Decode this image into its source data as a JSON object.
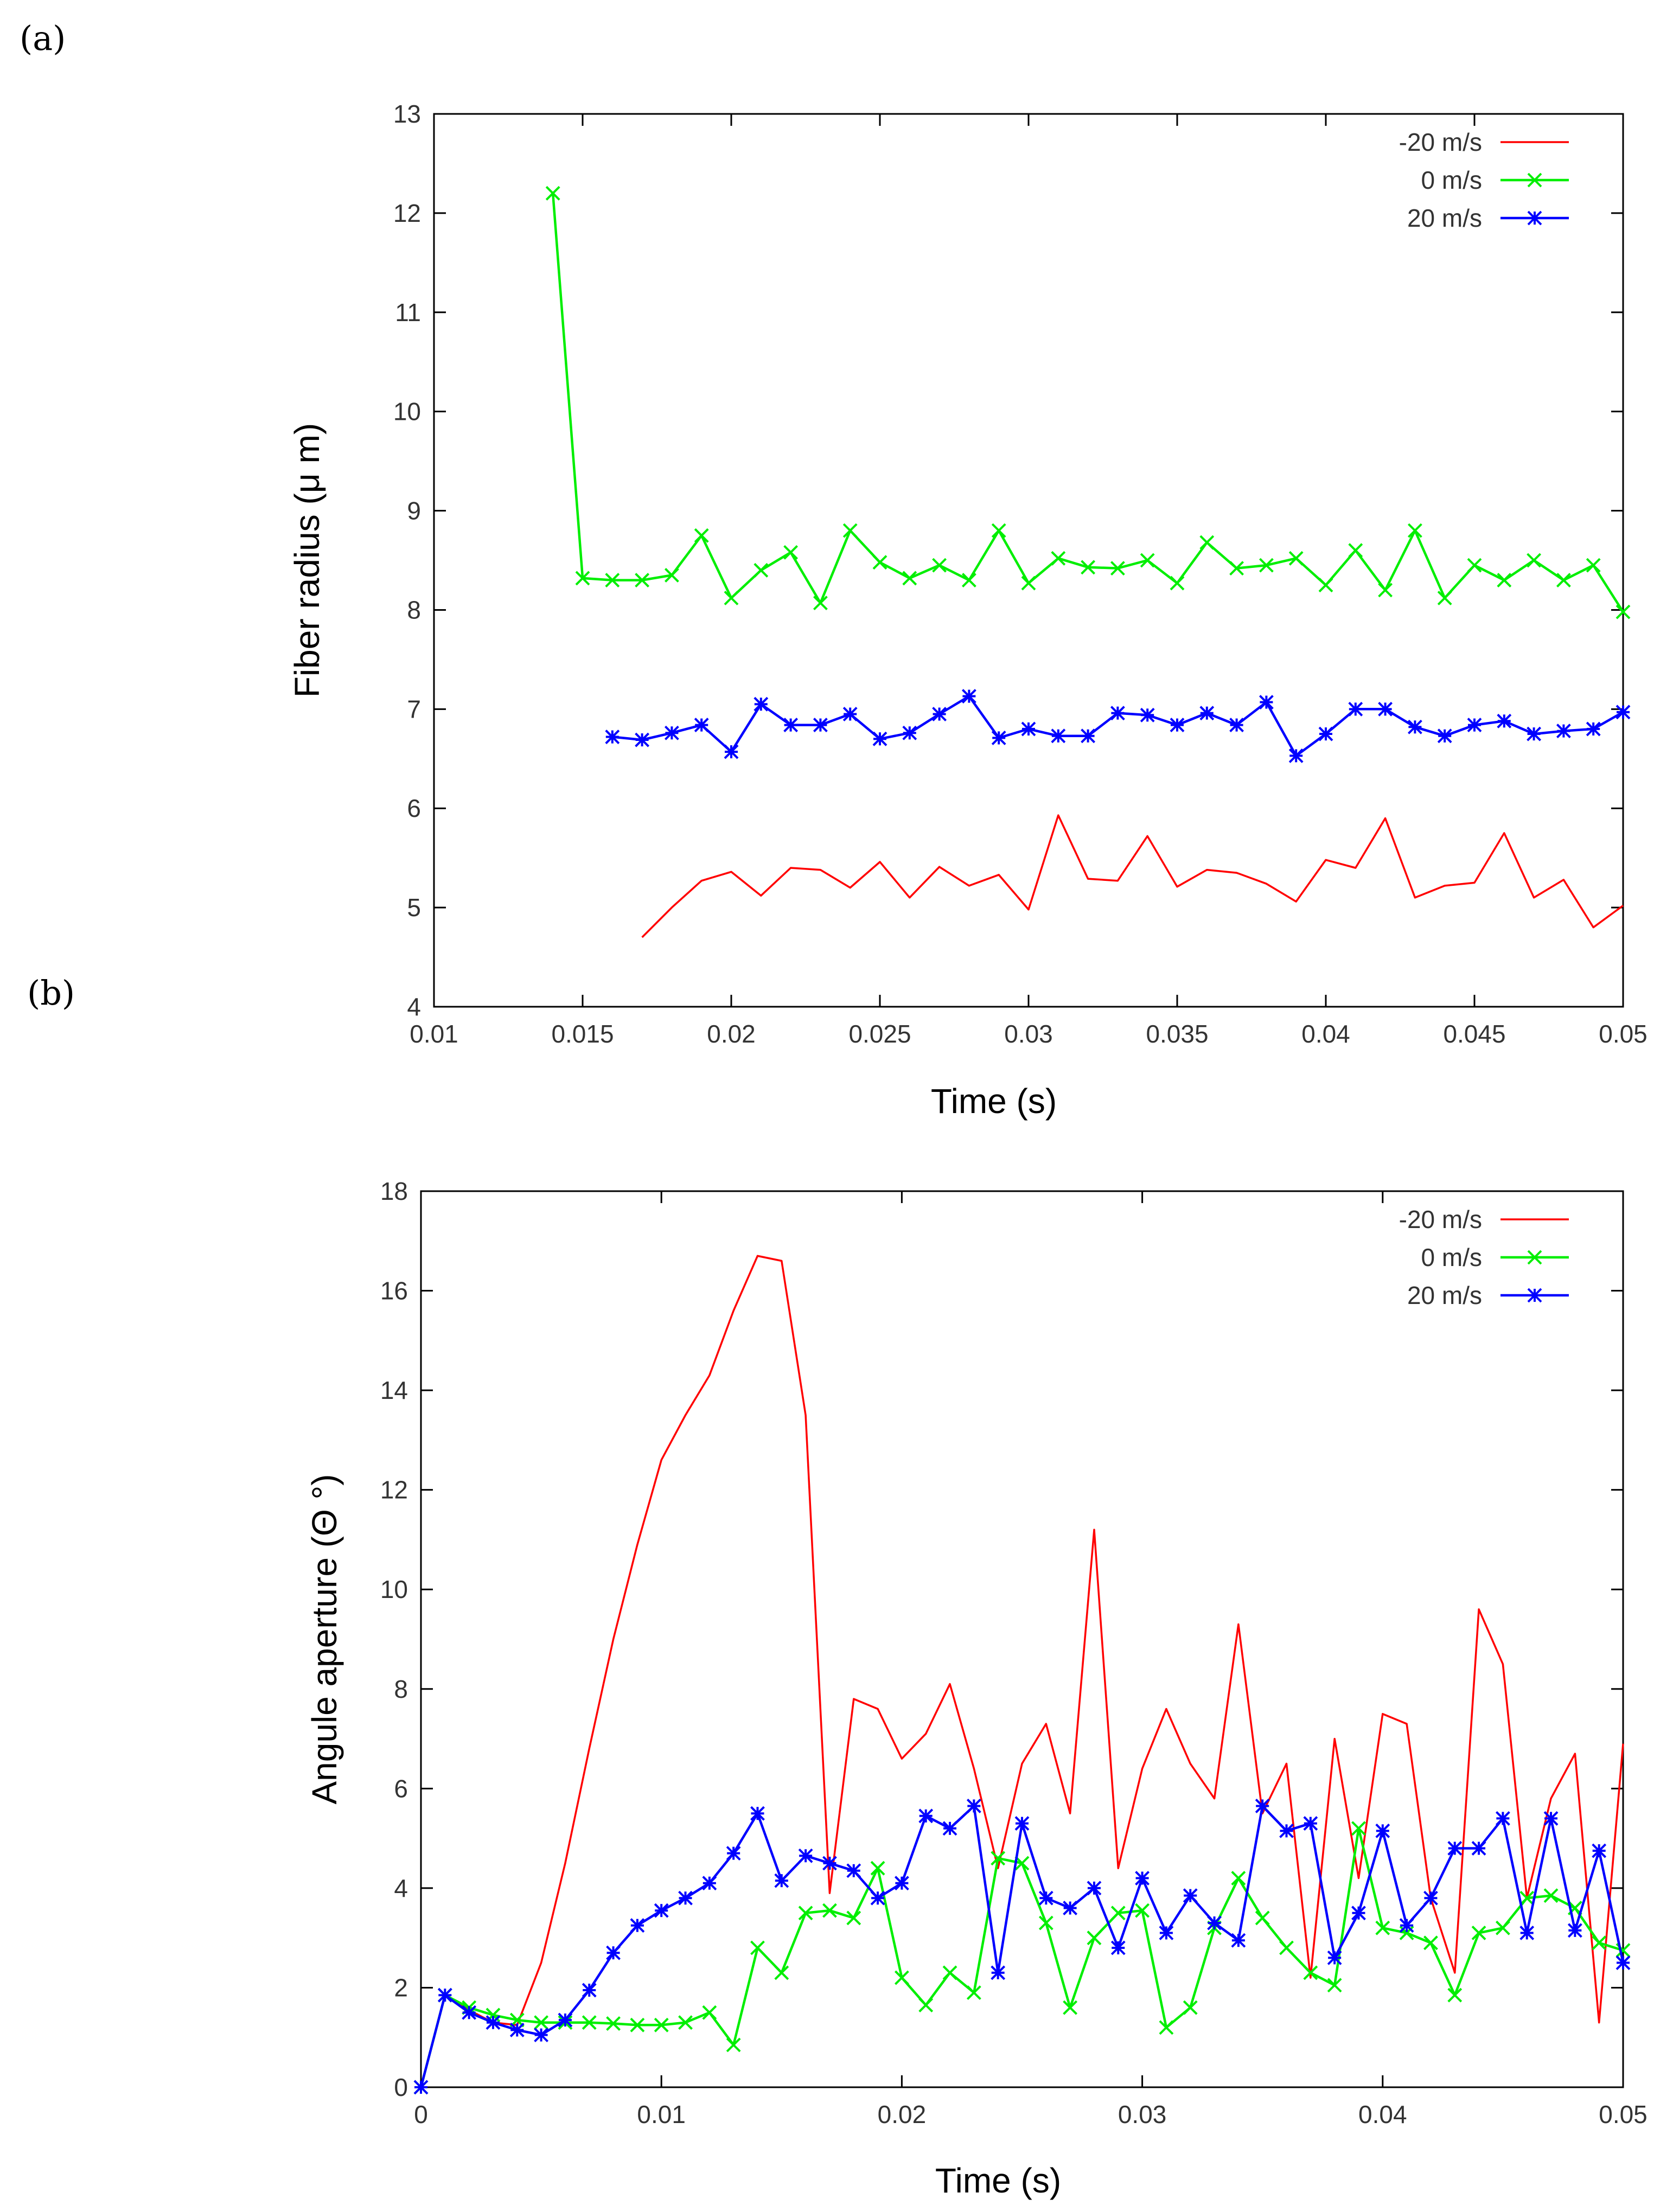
{
  "figure": {
    "panel_labels": [
      "(a)",
      "(b)"
    ]
  },
  "chart_data": [
    {
      "type": "line",
      "panel": "(a)",
      "title": "",
      "xlabel": "Time (s)",
      "ylabel": "Fiber  radius (μ m)",
      "xlim": [
        0.01,
        0.05
      ],
      "ylim": [
        4,
        13
      ],
      "xticks": [
        0.01,
        0.015,
        0.02,
        0.025,
        0.03,
        0.035,
        0.04,
        0.045,
        0.05
      ],
      "xtick_labels": [
        "0.01",
        "0.015",
        "0.02",
        "0.025",
        "0.03",
        "0.035",
        "0.04",
        "0.045",
        "0.05"
      ],
      "yticks": [
        4,
        5,
        6,
        7,
        8,
        9,
        10,
        11,
        12,
        13
      ],
      "ytick_labels": [
        "4",
        "5",
        "6",
        "7",
        "8",
        "9",
        "10",
        "11",
        "12",
        "13"
      ],
      "legend_position": "top-right",
      "series": [
        {
          "name": "-20 m/s",
          "color": "#ff0000",
          "marker": "none",
          "x": [
            0.017,
            0.018,
            0.019,
            0.02,
            0.021,
            0.022,
            0.023,
            0.024,
            0.025,
            0.026,
            0.027,
            0.028,
            0.029,
            0.03,
            0.031,
            0.032,
            0.033,
            0.034,
            0.035,
            0.036,
            0.037,
            0.038,
            0.039,
            0.04,
            0.041,
            0.042,
            0.043,
            0.044,
            0.045,
            0.046,
            0.047,
            0.048,
            0.049,
            0.05
          ],
          "y": [
            4.7,
            5.0,
            5.27,
            5.36,
            5.12,
            5.4,
            5.38,
            5.2,
            5.46,
            5.1,
            5.41,
            5.22,
            5.33,
            4.98,
            5.93,
            5.29,
            5.27,
            5.72,
            5.21,
            5.38,
            5.35,
            5.24,
            5.06,
            5.48,
            5.4,
            5.9,
            5.1,
            5.22,
            5.25,
            5.75,
            5.1,
            5.28,
            4.8,
            5.02
          ]
        },
        {
          "name": "0 m/s",
          "color": "#00ee00",
          "marker": "x",
          "x": [
            0.014,
            0.015,
            0.016,
            0.017,
            0.018,
            0.019,
            0.02,
            0.021,
            0.022,
            0.023,
            0.024,
            0.025,
            0.026,
            0.027,
            0.028,
            0.029,
            0.03,
            0.031,
            0.032,
            0.033,
            0.034,
            0.035,
            0.036,
            0.037,
            0.038,
            0.039,
            0.04,
            0.041,
            0.042,
            0.043,
            0.044,
            0.045,
            0.046,
            0.047,
            0.048,
            0.049,
            0.05
          ],
          "y": [
            12.2,
            8.32,
            8.3,
            8.3,
            8.35,
            8.75,
            8.12,
            8.4,
            8.58,
            8.07,
            8.8,
            8.48,
            8.32,
            8.45,
            8.3,
            8.8,
            8.27,
            8.52,
            8.43,
            8.42,
            8.5,
            8.27,
            8.68,
            8.42,
            8.45,
            8.52,
            8.25,
            8.6,
            8.2,
            8.8,
            8.12,
            8.45,
            8.3,
            8.5,
            8.3,
            8.45,
            7.98
          ]
        },
        {
          "name": "20 m/s",
          "color": "#0000ff",
          "marker": "star",
          "x": [
            0.016,
            0.017,
            0.018,
            0.019,
            0.02,
            0.021,
            0.022,
            0.023,
            0.024,
            0.025,
            0.026,
            0.027,
            0.028,
            0.029,
            0.03,
            0.031,
            0.032,
            0.033,
            0.034,
            0.035,
            0.036,
            0.037,
            0.038,
            0.039,
            0.04,
            0.041,
            0.042,
            0.043,
            0.044,
            0.045,
            0.046,
            0.047,
            0.048,
            0.049,
            0.05
          ],
          "y": [
            6.72,
            6.69,
            6.76,
            6.84,
            6.57,
            7.05,
            6.84,
            6.84,
            6.95,
            6.7,
            6.76,
            6.95,
            7.13,
            6.71,
            6.8,
            6.73,
            6.73,
            6.96,
            6.94,
            6.84,
            6.96,
            6.84,
            7.07,
            6.53,
            6.75,
            7.0,
            7.0,
            6.82,
            6.73,
            6.84,
            6.88,
            6.75,
            6.78,
            6.8,
            6.97
          ]
        }
      ]
    },
    {
      "type": "line",
      "panel": "(b)",
      "title": "",
      "xlabel": "Time (s)",
      "ylabel": "Angule aperture  (Θ °)",
      "xlim": [
        0,
        0.05
      ],
      "ylim": [
        0,
        18
      ],
      "xticks": [
        0,
        0.01,
        0.02,
        0.03,
        0.04,
        0.05
      ],
      "xtick_labels": [
        "0",
        "0.01",
        "0.02",
        "0.03",
        "0.04",
        "0.05"
      ],
      "yticks": [
        0,
        2,
        4,
        6,
        8,
        10,
        12,
        14,
        16,
        18
      ],
      "ytick_labels": [
        "0",
        "2",
        "4",
        "6",
        "8",
        "10",
        "12",
        "14",
        "16",
        "18"
      ],
      "legend_position": "top-right",
      "series": [
        {
          "name": "-20 m/s",
          "color": "#ff0000",
          "marker": "none",
          "x": [
            0.0,
            0.001,
            0.002,
            0.003,
            0.004,
            0.005,
            0.006,
            0.007,
            0.008,
            0.009,
            0.01,
            0.011,
            0.012,
            0.013,
            0.014,
            0.015,
            0.016,
            0.017,
            0.018,
            0.019,
            0.02,
            0.021,
            0.022,
            0.023,
            0.024,
            0.025,
            0.026,
            0.027,
            0.028,
            0.029,
            0.03,
            0.031,
            0.032,
            0.033,
            0.034,
            0.035,
            0.036,
            0.037,
            0.038,
            0.039,
            0.04,
            0.041,
            0.042,
            0.043,
            0.044,
            0.045,
            0.046,
            0.047,
            0.048,
            0.049,
            0.05
          ],
          "y": [
            0.0,
            1.85,
            1.55,
            1.3,
            1.25,
            2.5,
            4.5,
            6.8,
            9.0,
            10.9,
            12.6,
            13.5,
            14.3,
            15.6,
            16.7,
            16.6,
            13.5,
            3.9,
            7.8,
            7.6,
            6.6,
            7.1,
            8.1,
            6.4,
            4.4,
            6.5,
            7.3,
            5.5,
            11.2,
            4.4,
            6.4,
            7.6,
            6.5,
            5.8,
            9.3,
            5.5,
            6.5,
            2.2,
            7.0,
            4.2,
            7.5,
            7.3,
            3.8,
            2.3,
            9.6,
            8.5,
            3.8,
            5.8,
            6.7,
            1.3,
            6.9
          ]
        },
        {
          "name": "0 m/s",
          "color": "#00ee00",
          "marker": "x",
          "x": [
            0.0,
            0.001,
            0.002,
            0.003,
            0.004,
            0.005,
            0.006,
            0.007,
            0.008,
            0.009,
            0.01,
            0.011,
            0.012,
            0.013,
            0.014,
            0.015,
            0.016,
            0.017,
            0.018,
            0.019,
            0.02,
            0.021,
            0.022,
            0.023,
            0.024,
            0.025,
            0.026,
            0.027,
            0.028,
            0.029,
            0.03,
            0.031,
            0.032,
            0.033,
            0.034,
            0.035,
            0.036,
            0.037,
            0.038,
            0.039,
            0.04,
            0.041,
            0.042,
            0.043,
            0.044,
            0.045,
            0.046,
            0.047,
            0.048,
            0.049,
            0.05
          ],
          "y": [
            0.0,
            1.85,
            1.6,
            1.45,
            1.35,
            1.3,
            1.3,
            1.3,
            1.28,
            1.25,
            1.25,
            1.3,
            1.5,
            0.85,
            2.8,
            2.3,
            3.5,
            3.55,
            3.4,
            4.4,
            2.2,
            1.65,
            2.3,
            1.9,
            4.6,
            4.5,
            3.3,
            1.6,
            3.0,
            3.5,
            3.55,
            1.2,
            1.6,
            3.2,
            4.2,
            3.4,
            2.8,
            2.3,
            2.05,
            5.2,
            3.2,
            3.1,
            2.9,
            1.85,
            3.1,
            3.2,
            3.8,
            3.85,
            3.6,
            2.9,
            2.75
          ]
        },
        {
          "name": "20 m/s",
          "color": "#0000ff",
          "marker": "star",
          "x": [
            0.0,
            0.001,
            0.002,
            0.003,
            0.004,
            0.005,
            0.006,
            0.007,
            0.008,
            0.009,
            0.01,
            0.011,
            0.012,
            0.013,
            0.014,
            0.015,
            0.016,
            0.017,
            0.018,
            0.019,
            0.02,
            0.021,
            0.022,
            0.023,
            0.024,
            0.025,
            0.026,
            0.027,
            0.028,
            0.029,
            0.03,
            0.031,
            0.032,
            0.033,
            0.034,
            0.035,
            0.036,
            0.037,
            0.038,
            0.039,
            0.04,
            0.041,
            0.042,
            0.043,
            0.044,
            0.045,
            0.046,
            0.047,
            0.048,
            0.049,
            0.05
          ],
          "y": [
            0.0,
            1.85,
            1.5,
            1.3,
            1.15,
            1.05,
            1.35,
            1.95,
            2.7,
            3.25,
            3.55,
            3.8,
            4.1,
            4.7,
            5.5,
            4.15,
            4.65,
            4.5,
            4.35,
            3.8,
            4.1,
            5.45,
            5.2,
            5.65,
            2.3,
            5.3,
            3.8,
            3.6,
            4.0,
            2.8,
            4.2,
            3.1,
            3.85,
            3.3,
            2.95,
            5.65,
            5.15,
            5.3,
            2.6,
            3.5,
            5.15,
            3.25,
            3.8,
            4.8,
            4.8,
            5.4,
            3.1,
            5.4,
            3.15,
            4.75,
            2.5
          ]
        }
      ]
    }
  ]
}
